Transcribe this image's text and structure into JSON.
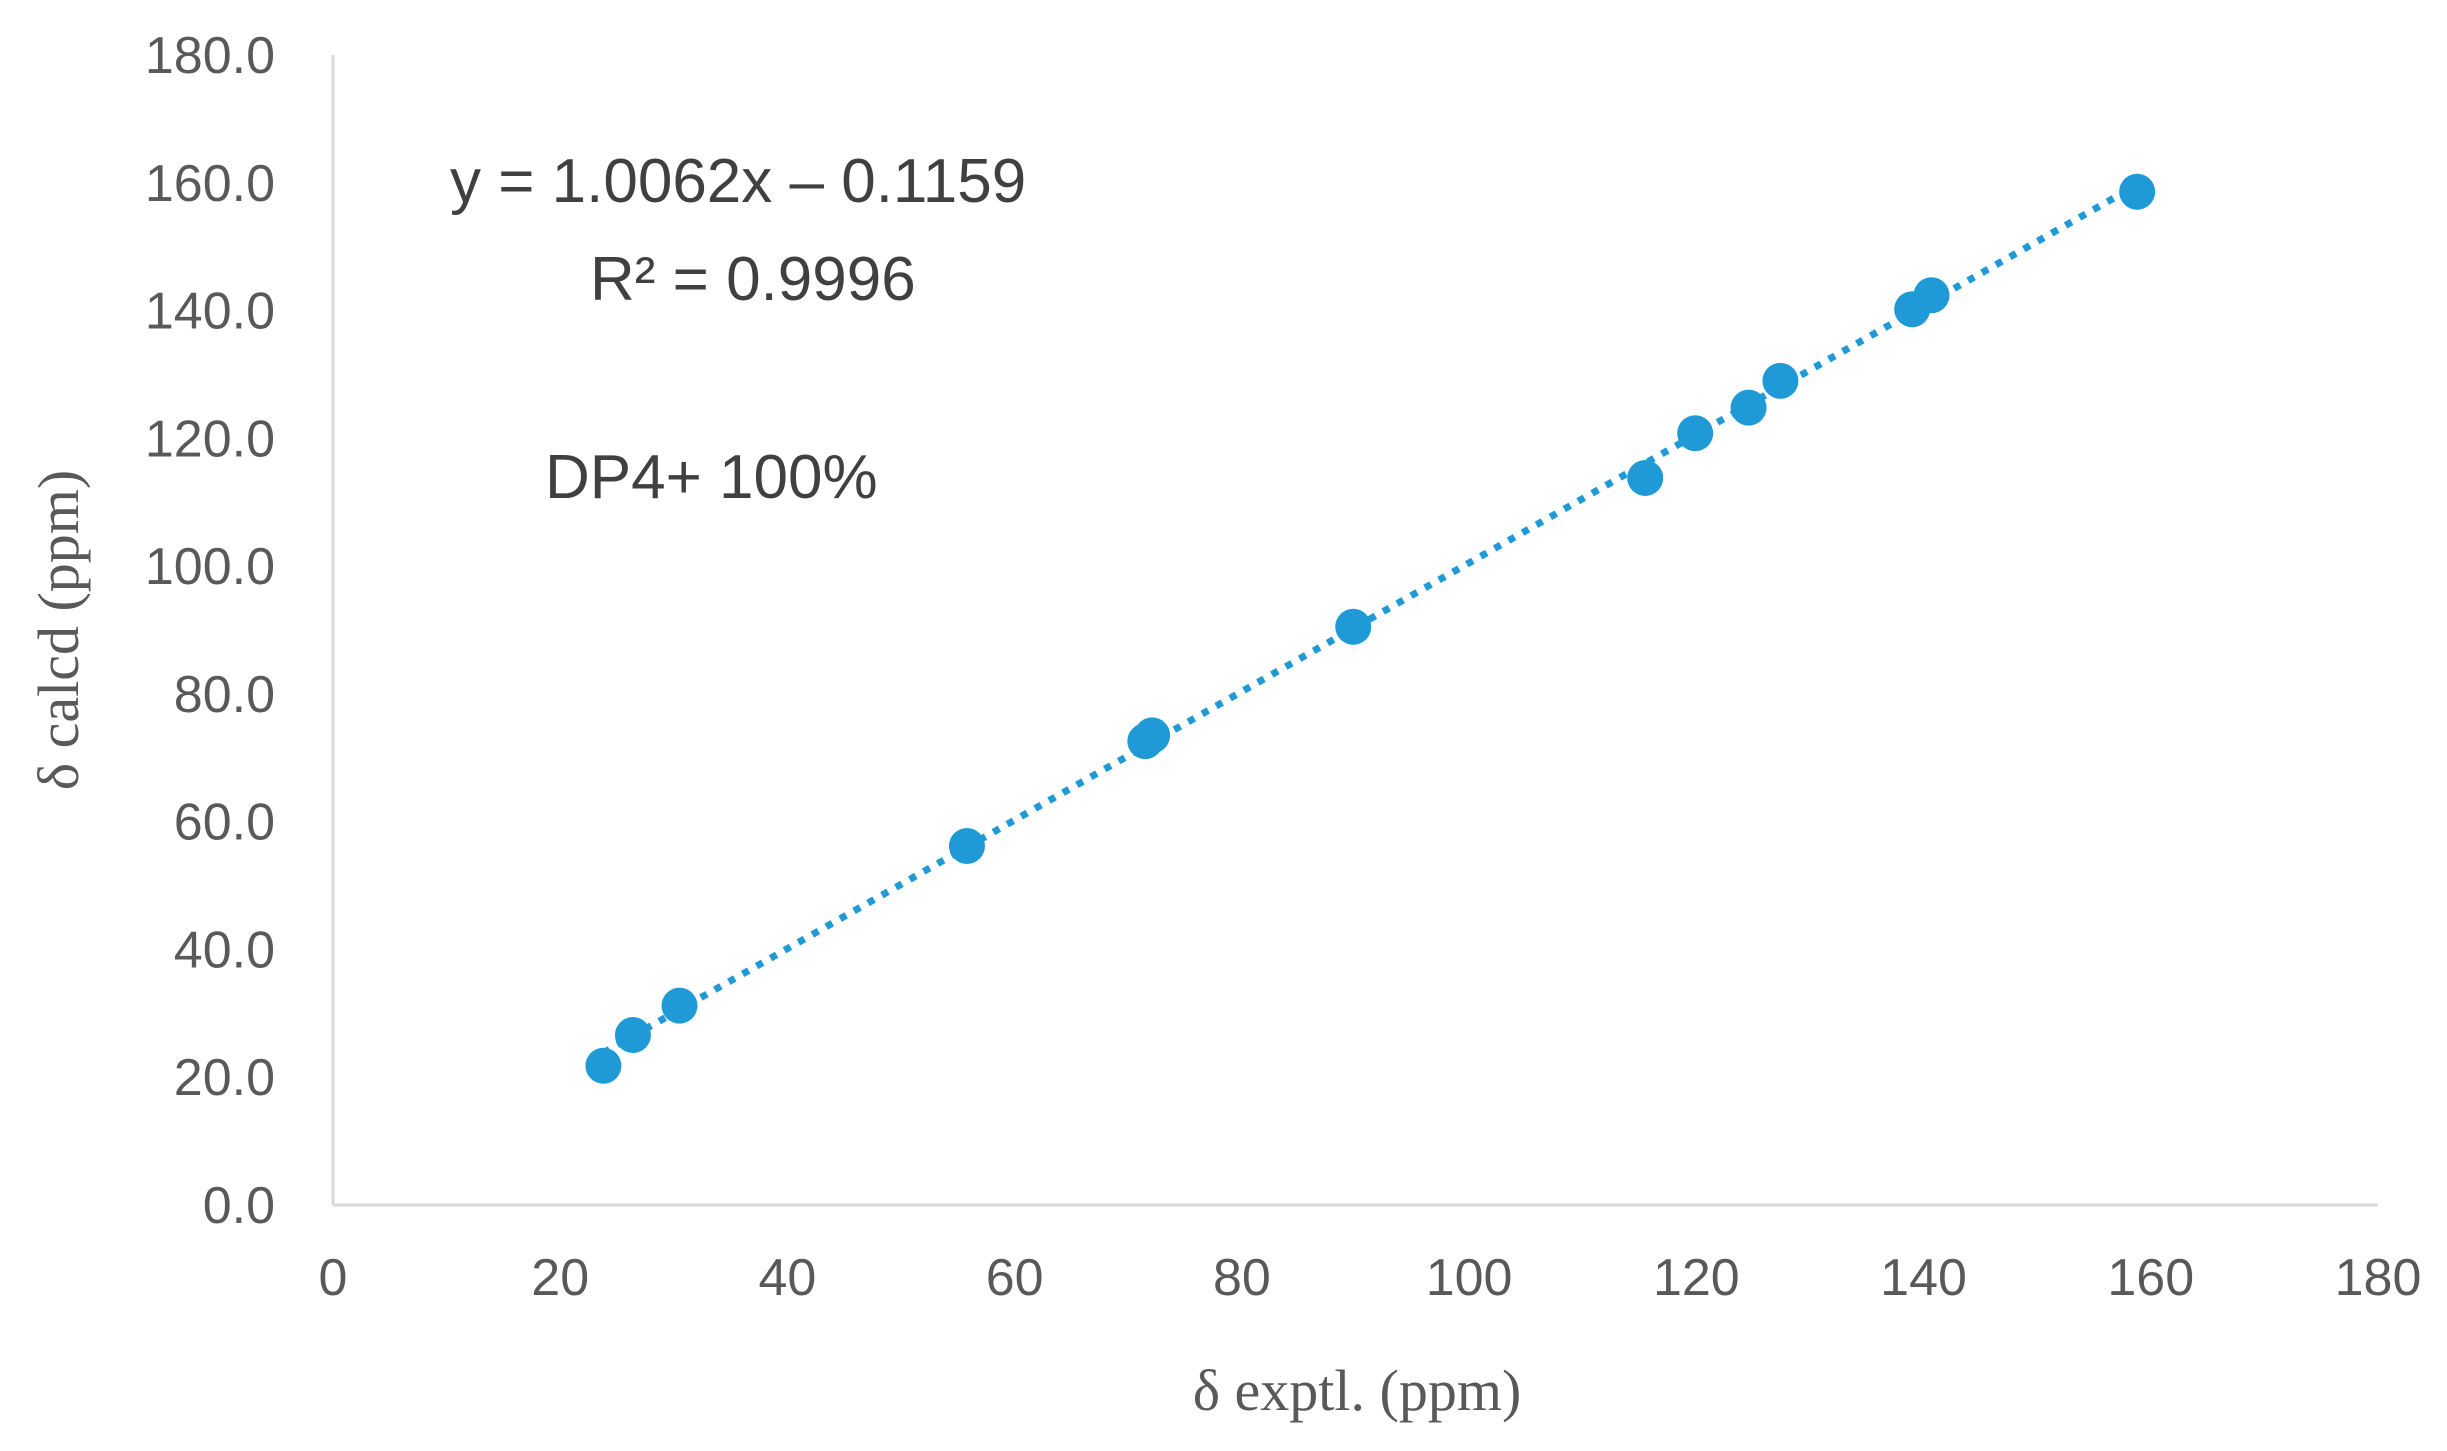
{
  "chart_data": {
    "type": "scatter",
    "title": "",
    "xlabel": "δ exptl. (ppm)",
    "ylabel": "δ calcd (ppm)",
    "xlim": [
      0,
      180
    ],
    "ylim": [
      0,
      180
    ],
    "xticks": [
      "0",
      "20",
      "40",
      "60",
      "80",
      "100",
      "120",
      "140",
      "160",
      "180"
    ],
    "yticks": [
      "0.0",
      "20.0",
      "40.0",
      "60.0",
      "80.0",
      "100.0",
      "120.0",
      "140.0",
      "160.0",
      "180.0"
    ],
    "grid": false,
    "legend": "none",
    "marker_color": "#1f9ad6",
    "trendline_color": "#1f9ad6",
    "series": [
      {
        "points": [
          {
            "x": 23.8,
            "y": 21.8
          },
          {
            "x": 26.4,
            "y": 26.6
          },
          {
            "x": 30.5,
            "y": 31.2
          },
          {
            "x": 55.8,
            "y": 56.2
          },
          {
            "x": 71.5,
            "y": 72.6
          },
          {
            "x": 72.1,
            "y": 73.5
          },
          {
            "x": 89.8,
            "y": 90.5
          },
          {
            "x": 115.5,
            "y": 113.8
          },
          {
            "x": 119.9,
            "y": 120.8
          },
          {
            "x": 124.6,
            "y": 124.8
          },
          {
            "x": 127.4,
            "y": 129.0
          },
          {
            "x": 139.0,
            "y": 140.2
          },
          {
            "x": 140.7,
            "y": 142.4
          },
          {
            "x": 158.8,
            "y": 158.6
          }
        ]
      }
    ],
    "trendline": {
      "style": "dotted",
      "slope": 1.0062,
      "intercept": -0.1159,
      "x_range": [
        23.8,
        158.8
      ]
    },
    "annotations": {
      "equation": "y = 1.0062x – 0.1159",
      "r_squared": "R² = 0.9996",
      "dp4": "DP4+ 100%"
    }
  }
}
